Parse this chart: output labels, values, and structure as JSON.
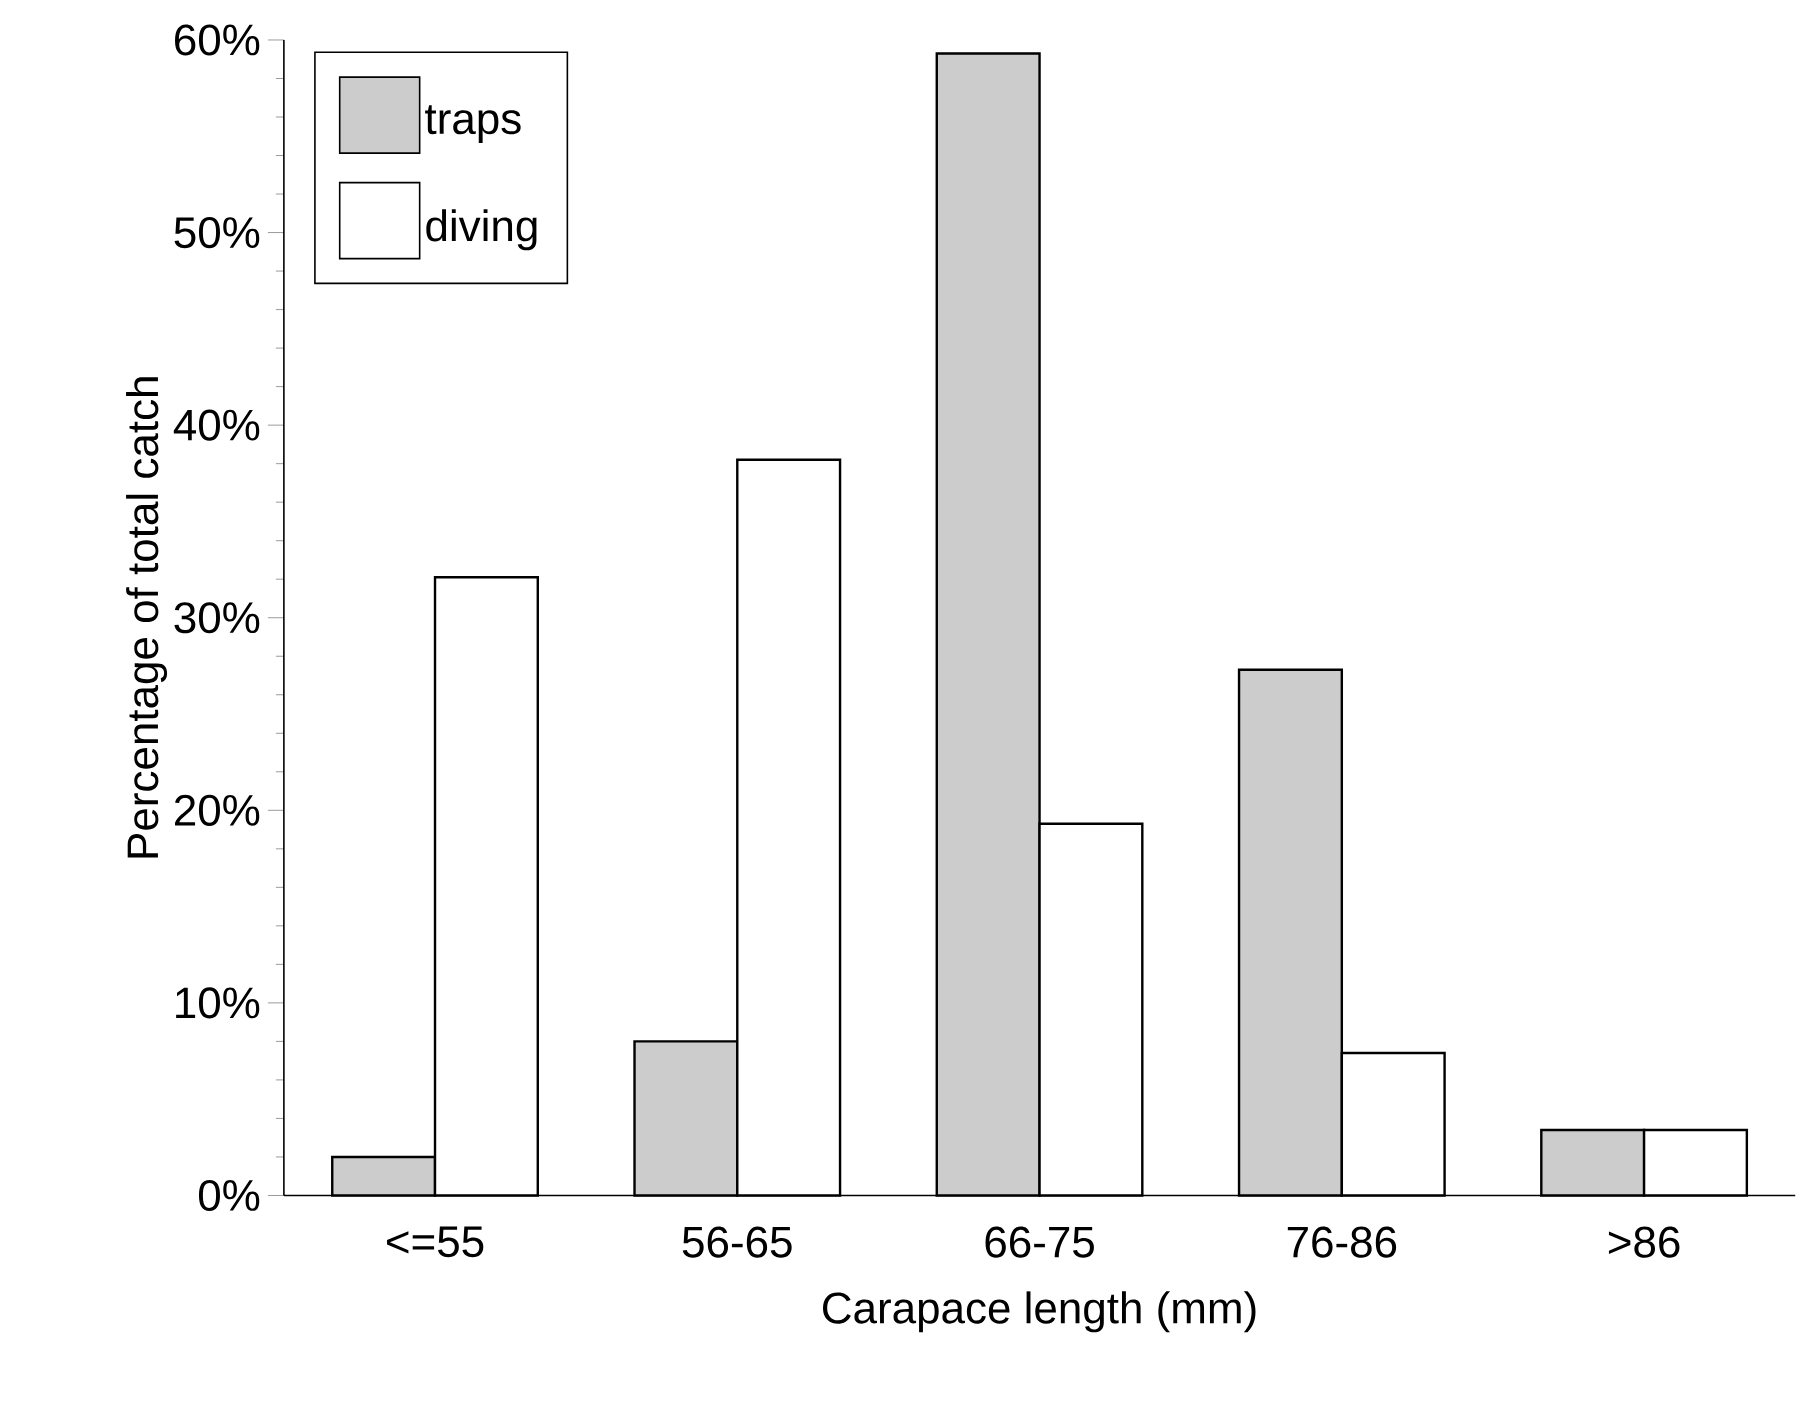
{
  "chart_data": {
    "type": "bar",
    "xlabel": "Carapace length (mm)",
    "ylabel": "Percentage of total catch",
    "categories": [
      "<=55",
      "56-65",
      "66-75",
      "76-86",
      ">86"
    ],
    "series": [
      {
        "name": "traps",
        "color": "#cccccc",
        "values": [
          2,
          8,
          59.3,
          27.3,
          3.4
        ]
      },
      {
        "name": "diving",
        "color": "#ffffff",
        "values": [
          32.1,
          38.2,
          19.3,
          7.4,
          3.4
        ]
      }
    ],
    "ylim": [
      0,
      60
    ],
    "yticks": [
      {
        "value": 0,
        "label": "0%"
      },
      {
        "value": 10,
        "label": "10%"
      },
      {
        "value": 20,
        "label": "20%"
      },
      {
        "value": 30,
        "label": "30%"
      },
      {
        "value": 40,
        "label": "40%"
      },
      {
        "value": 50,
        "label": "50%"
      },
      {
        "value": 60,
        "label": "60%"
      }
    ],
    "grid": false,
    "legend": "top left"
  }
}
